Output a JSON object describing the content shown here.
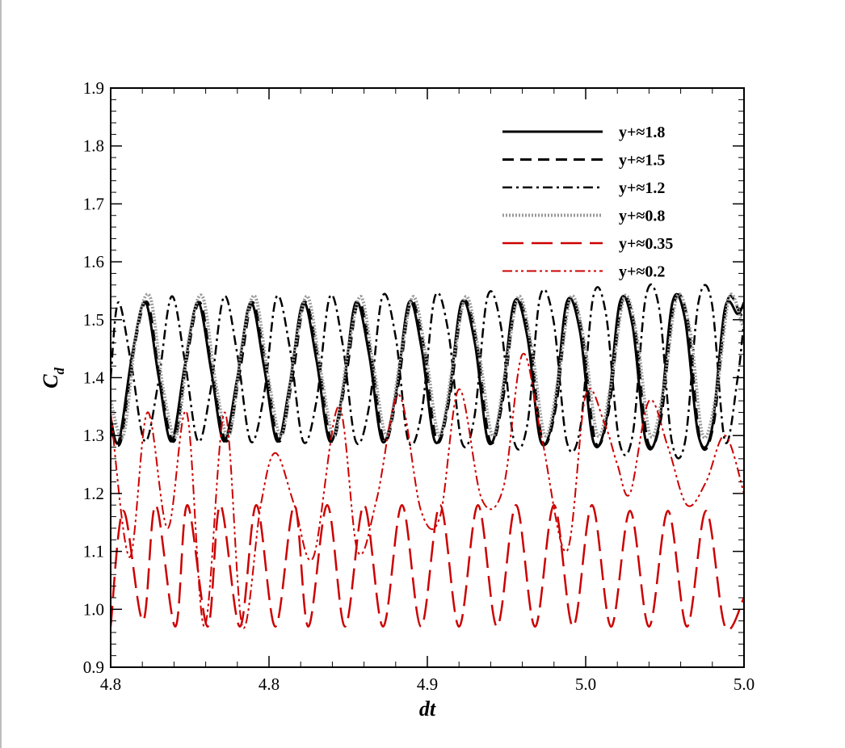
{
  "chart_data": {
    "type": "line",
    "xlabel": "dt",
    "ylabel_main": "C",
    "ylabel_sub": "d",
    "xlim": [
      0,
      1
    ],
    "ylim": [
      0.9,
      1.9
    ],
    "grid": false,
    "legend_position": "top-right",
    "x_ticks": [
      {
        "pos": 0.0,
        "label": "4.8"
      },
      {
        "pos": 0.25,
        "label": "4.8"
      },
      {
        "pos": 0.5,
        "label": "4.9"
      },
      {
        "pos": 0.75,
        "label": "5.0"
      },
      {
        "pos": 1.0,
        "label": "5.0"
      }
    ],
    "y_ticks": [
      {
        "value": 0.9,
        "label": "0.9"
      },
      {
        "value": 1.0,
        "label": "1.0"
      },
      {
        "value": 1.1,
        "label": "1.1"
      },
      {
        "value": 1.2,
        "label": "1.2"
      },
      {
        "value": 1.3,
        "label": "1.3"
      },
      {
        "value": 1.4,
        "label": "1.4"
      },
      {
        "value": 1.5,
        "label": "1.5"
      },
      {
        "value": 1.6,
        "label": "1.6"
      },
      {
        "value": 1.7,
        "label": "1.7"
      },
      {
        "value": 1.8,
        "label": "1.8"
      },
      {
        "value": 1.9,
        "label": "1.9"
      }
    ],
    "series": [
      {
        "name": "y+≈1.8",
        "style": "solid",
        "color": "#000000",
        "width": 3,
        "x": [
          0.0,
          0.013,
          0.034,
          0.055,
          0.076,
          0.096,
          0.117,
          0.138,
          0.159,
          0.179,
          0.2,
          0.221,
          0.242,
          0.263,
          0.283,
          0.304,
          0.325,
          0.346,
          0.367,
          0.387,
          0.408,
          0.429,
          0.45,
          0.471,
          0.491,
          0.512,
          0.533,
          0.554,
          0.575,
          0.596,
          0.616,
          0.637,
          0.658,
          0.679,
          0.7,
          0.72,
          0.741,
          0.762,
          0.783,
          0.804,
          0.824,
          0.845,
          0.866,
          0.887,
          0.907,
          0.928,
          0.949,
          0.97,
          0.99,
          1.0
        ],
        "y": [
          1.33,
          1.29,
          1.44,
          1.53,
          1.4,
          1.29,
          1.42,
          1.53,
          1.41,
          1.29,
          1.4,
          1.53,
          1.42,
          1.29,
          1.39,
          1.53,
          1.43,
          1.29,
          1.38,
          1.53,
          1.44,
          1.29,
          1.37,
          1.53,
          1.45,
          1.29,
          1.36,
          1.53,
          1.46,
          1.29,
          1.35,
          1.53,
          1.47,
          1.29,
          1.34,
          1.53,
          1.48,
          1.29,
          1.33,
          1.53,
          1.49,
          1.29,
          1.32,
          1.53,
          1.5,
          1.3,
          1.31,
          1.52,
          1.51,
          1.53
        ]
      },
      {
        "name": "y+≈1.5",
        "style": "dash",
        "color": "#000000",
        "width": 3,
        "x": [
          0.0,
          0.016,
          0.037,
          0.058,
          0.079,
          0.1,
          0.12,
          0.141,
          0.162,
          0.183,
          0.204,
          0.224,
          0.245,
          0.266,
          0.287,
          0.307,
          0.328,
          0.349,
          0.37,
          0.391,
          0.411,
          0.432,
          0.453,
          0.474,
          0.495,
          0.515,
          0.536,
          0.557,
          0.578,
          0.599,
          0.619,
          0.64,
          0.661,
          0.682,
          0.703,
          0.723,
          0.744,
          0.765,
          0.786,
          0.807,
          0.827,
          0.848,
          0.869,
          0.89,
          0.911,
          0.931,
          0.952,
          0.973,
          0.994,
          1.0
        ],
        "y": [
          1.31,
          1.29,
          1.45,
          1.53,
          1.39,
          1.29,
          1.43,
          1.53,
          1.4,
          1.29,
          1.41,
          1.53,
          1.42,
          1.29,
          1.4,
          1.53,
          1.43,
          1.29,
          1.39,
          1.53,
          1.44,
          1.29,
          1.38,
          1.53,
          1.45,
          1.29,
          1.37,
          1.53,
          1.46,
          1.29,
          1.36,
          1.53,
          1.47,
          1.29,
          1.35,
          1.53,
          1.48,
          1.29,
          1.34,
          1.53,
          1.49,
          1.29,
          1.33,
          1.53,
          1.5,
          1.29,
          1.32,
          1.53,
          1.51,
          1.5
        ]
      },
      {
        "name": "y+≈1.2",
        "style": "dashdot",
        "color": "#000000",
        "width": 2.5,
        "x": [
          0.0,
          0.012,
          0.033,
          0.054,
          0.075,
          0.096,
          0.117,
          0.138,
          0.158,
          0.179,
          0.2,
          0.221,
          0.242,
          0.262,
          0.283,
          0.304,
          0.325,
          0.346,
          0.366,
          0.387,
          0.408,
          0.429,
          0.45,
          0.47,
          0.491,
          0.512,
          0.533,
          0.554,
          0.574,
          0.595,
          0.616,
          0.637,
          0.658,
          0.678,
          0.699,
          0.72,
          0.741,
          0.762,
          0.782,
          0.803,
          0.824,
          0.845,
          0.866,
          0.886,
          0.907,
          0.928,
          0.949,
          0.97,
          0.99,
          1.0
        ],
        "y": [
          1.4,
          1.53,
          1.42,
          1.29,
          1.39,
          1.54,
          1.43,
          1.29,
          1.38,
          1.54,
          1.44,
          1.29,
          1.37,
          1.54,
          1.45,
          1.29,
          1.36,
          1.54,
          1.46,
          1.29,
          1.35,
          1.54,
          1.47,
          1.29,
          1.34,
          1.54,
          1.48,
          1.29,
          1.33,
          1.54,
          1.49,
          1.29,
          1.32,
          1.54,
          1.5,
          1.29,
          1.31,
          1.54,
          1.51,
          1.29,
          1.3,
          1.54,
          1.52,
          1.29,
          1.29,
          1.53,
          1.53,
          1.29,
          1.4,
          1.5
        ]
      },
      {
        "name": "y+≈0.8",
        "style": "dotted",
        "color": "#9a9a9a",
        "width": 4,
        "x": [
          0.0,
          0.02,
          0.041,
          0.062,
          0.083,
          0.104,
          0.124,
          0.145,
          0.166,
          0.187,
          0.208,
          0.228,
          0.249,
          0.27,
          0.291,
          0.311,
          0.332,
          0.353,
          0.374,
          0.395,
          0.415,
          0.436,
          0.457,
          0.478,
          0.499,
          0.519,
          0.54,
          0.561,
          0.582,
          0.603,
          0.623,
          0.644,
          0.665,
          0.686,
          0.707,
          0.727,
          0.748,
          0.769,
          0.79,
          0.811,
          0.831,
          0.852,
          0.873,
          0.894,
          0.915,
          0.935,
          0.956,
          0.977,
          0.998,
          1.0
        ],
        "y": [
          1.36,
          1.3,
          1.48,
          1.54,
          1.38,
          1.3,
          1.47,
          1.54,
          1.39,
          1.3,
          1.46,
          1.54,
          1.4,
          1.3,
          1.45,
          1.54,
          1.41,
          1.3,
          1.44,
          1.54,
          1.42,
          1.3,
          1.43,
          1.54,
          1.43,
          1.3,
          1.42,
          1.54,
          1.44,
          1.3,
          1.41,
          1.54,
          1.45,
          1.3,
          1.4,
          1.54,
          1.46,
          1.3,
          1.39,
          1.54,
          1.47,
          1.3,
          1.38,
          1.54,
          1.48,
          1.3,
          1.37,
          1.54,
          1.49,
          1.5
        ]
      },
      {
        "name": "y+≈0.35",
        "style": "longdash",
        "color": "#cc0000",
        "width": 2.5,
        "x": [
          0.0,
          0.02,
          0.051,
          0.071,
          0.102,
          0.121,
          0.153,
          0.173,
          0.204,
          0.23,
          0.26,
          0.29,
          0.312,
          0.342,
          0.37,
          0.4,
          0.43,
          0.46,
          0.49,
          0.52,
          0.55,
          0.58,
          0.61,
          0.64,
          0.67,
          0.7,
          0.73,
          0.76,
          0.79,
          0.82,
          0.85,
          0.88,
          0.91,
          0.94,
          0.97,
          1.0
        ],
        "y": [
          0.97,
          1.17,
          0.98,
          1.18,
          0.97,
          1.18,
          0.97,
          1.18,
          0.97,
          1.18,
          0.97,
          1.18,
          0.97,
          1.18,
          0.97,
          1.18,
          0.97,
          1.18,
          0.97,
          1.18,
          0.97,
          1.18,
          0.97,
          1.18,
          0.97,
          1.18,
          0.97,
          1.18,
          0.97,
          1.17,
          0.97,
          1.17,
          0.97,
          1.17,
          0.97,
          1.02
        ]
      },
      {
        "name": "y+≈0.2",
        "style": "dashdotdot",
        "color": "#cc0000",
        "width": 2,
        "x": [
          0.0,
          0.03,
          0.058,
          0.09,
          0.12,
          0.148,
          0.18,
          0.208,
          0.237,
          0.26,
          0.29,
          0.32,
          0.36,
          0.39,
          0.42,
          0.455,
          0.49,
          0.52,
          0.55,
          0.586,
          0.62,
          0.65,
          0.68,
          0.72,
          0.75,
          0.78,
          0.8,
          0.82,
          0.85,
          0.88,
          0.91,
          0.94,
          0.97,
          1.0
        ],
        "y": [
          1.34,
          1.09,
          1.34,
          1.14,
          1.34,
          0.97,
          1.34,
          0.97,
          1.18,
          1.27,
          1.18,
          1.09,
          1.35,
          1.1,
          1.19,
          1.37,
          1.17,
          1.16,
          1.38,
          1.19,
          1.21,
          1.44,
          1.3,
          1.1,
          1.37,
          1.32,
          1.25,
          1.2,
          1.36,
          1.28,
          1.18,
          1.22,
          1.3,
          1.2
        ]
      }
    ]
  }
}
